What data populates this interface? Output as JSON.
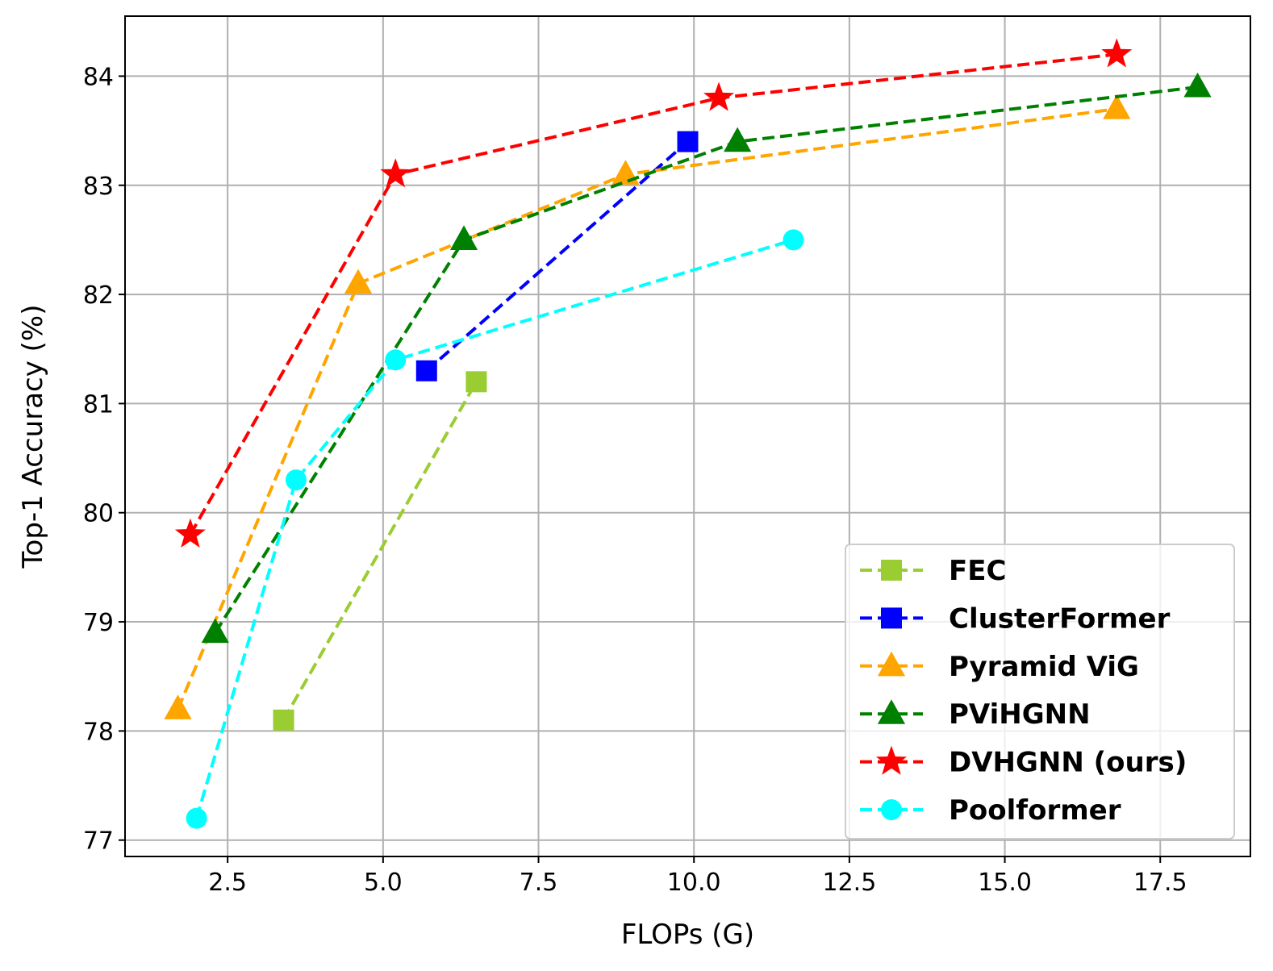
{
  "chart_data": {
    "type": "line",
    "title": "",
    "xlabel": "FLOPs (G)",
    "ylabel": "Top-1 Accuracy (%)",
    "xlim": [
      0.85,
      18.95
    ],
    "ylim": [
      76.85,
      84.55
    ],
    "x_ticks": [
      2.5,
      5.0,
      7.5,
      10.0,
      12.5,
      15.0,
      17.5
    ],
    "x_tick_labels": [
      "2.5",
      "5.0",
      "7.5",
      "10.0",
      "12.5",
      "15.0",
      "17.5"
    ],
    "y_ticks": [
      77,
      78,
      79,
      80,
      81,
      82,
      83,
      84
    ],
    "y_tick_labels": [
      "77",
      "78",
      "79",
      "80",
      "81",
      "82",
      "83",
      "84"
    ],
    "grid": true,
    "legend_position": "lower-right",
    "series": [
      {
        "name": "FEC",
        "color": "#9acd32",
        "marker": "square",
        "x": [
          3.4,
          6.5
        ],
        "y": [
          78.1,
          81.2
        ]
      },
      {
        "name": "ClusterFormer",
        "color": "#0000ff",
        "marker": "square",
        "x": [
          5.7,
          9.9
        ],
        "y": [
          81.3,
          83.4
        ]
      },
      {
        "name": "Pyramid ViG",
        "color": "#ffa500",
        "marker": "triangle",
        "x": [
          1.7,
          4.6,
          8.9,
          16.8
        ],
        "y": [
          78.2,
          82.1,
          83.1,
          83.7
        ]
      },
      {
        "name": "PViHGNN",
        "color": "#008000",
        "marker": "triangle",
        "x": [
          2.3,
          6.3,
          10.7,
          18.1
        ],
        "y": [
          78.9,
          82.5,
          83.4,
          83.9
        ]
      },
      {
        "name": "DVHGNN (ours)",
        "color": "#ff0000",
        "marker": "star",
        "x": [
          1.9,
          5.2,
          10.4,
          16.8
        ],
        "y": [
          79.8,
          83.1,
          83.8,
          84.2
        ]
      },
      {
        "name": "Poolformer",
        "color": "#00ffff",
        "marker": "circle",
        "x": [
          2.0,
          3.6,
          5.2,
          11.6
        ],
        "y": [
          77.2,
          80.3,
          81.4,
          82.5
        ]
      }
    ]
  }
}
